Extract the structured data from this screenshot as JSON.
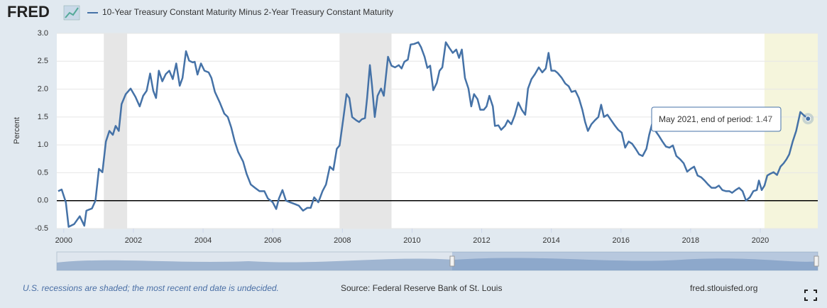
{
  "chart_data": {
    "type": "line",
    "logo": "FRED",
    "ylabel": "Percent",
    "xlim": [
      1999.8,
      2021.65
    ],
    "xticks": [
      2000,
      2002,
      2004,
      2006,
      2008,
      2010,
      2012,
      2014,
      2016,
      2018,
      2020
    ],
    "ylim": [
      -0.5,
      3.0
    ],
    "yticks": [
      {
        "value": 3.0,
        "label": "3.0"
      },
      2.5,
      {
        "value": 2.0,
        "label": "2.0"
      },
      1.5,
      {
        "value": 1.0,
        "label": "1.0"
      },
      0.5,
      {
        "value": 0,
        "label": "0.0"
      },
      -0.5
    ],
    "grid": true,
    "zero_line": true,
    "recessions": [
      {
        "start": 2001.15,
        "end": 2001.82,
        "color": "#e6e6e6"
      },
      {
        "start": 2007.92,
        "end": 2009.41,
        "color": "#e6e6e6"
      },
      {
        "start": 2020.12,
        "end": null,
        "color": "#f5f5dc"
      }
    ],
    "series": [
      {
        "name": "10-Year Treasury Constant Maturity Minus 2-Year Treasury Constant Maturity",
        "color": "#4572a7",
        "x": [
          1999.84,
          1999.94,
          2000.06,
          2000.14,
          2000.3,
          2000.46,
          2000.59,
          2000.65,
          2000.81,
          2000.91,
          2001.01,
          2001.11,
          2001.21,
          2001.31,
          2001.41,
          2001.49,
          2001.58,
          2001.66,
          2001.78,
          2001.92,
          2002.06,
          2002.18,
          2002.28,
          2002.38,
          2002.48,
          2002.57,
          2002.65,
          2002.73,
          2002.83,
          2002.93,
          2003.03,
          2003.13,
          2003.23,
          2003.33,
          2003.41,
          2003.51,
          2003.6,
          2003.7,
          2003.76,
          2003.84,
          2003.94,
          2004.04,
          2004.16,
          2004.24,
          2004.34,
          2004.48,
          2004.61,
          2004.71,
          2004.81,
          2004.91,
          2005.01,
          2005.15,
          2005.25,
          2005.37,
          2005.49,
          2005.62,
          2005.76,
          2005.86,
          2006.0,
          2006.1,
          2006.18,
          2006.28,
          2006.38,
          2006.5,
          2006.63,
          2006.75,
          2006.87,
          2006.99,
          2007.09,
          2007.19,
          2007.31,
          2007.43,
          2007.53,
          2007.64,
          2007.74,
          2007.84,
          2007.92,
          2008.02,
          2008.12,
          2008.2,
          2008.28,
          2008.4,
          2008.48,
          2008.56,
          2008.65,
          2008.71,
          2008.79,
          2008.85,
          2008.93,
          2009.01,
          2009.11,
          2009.19,
          2009.31,
          2009.41,
          2009.51,
          2009.62,
          2009.7,
          2009.78,
          2009.88,
          2009.96,
          2010.06,
          2010.18,
          2010.26,
          2010.36,
          2010.44,
          2010.52,
          2010.61,
          2010.71,
          2010.79,
          2010.87,
          2010.97,
          2011.07,
          2011.17,
          2011.27,
          2011.35,
          2011.43,
          2011.52,
          2011.62,
          2011.7,
          2011.78,
          2011.88,
          2011.96,
          2012.06,
          2012.14,
          2012.22,
          2012.32,
          2012.38,
          2012.48,
          2012.56,
          2012.67,
          2012.75,
          2012.85,
          2012.95,
          2013.05,
          2013.15,
          2013.25,
          2013.33,
          2013.43,
          2013.53,
          2013.64,
          2013.74,
          2013.84,
          2013.92,
          2014.0,
          2014.1,
          2014.18,
          2014.3,
          2014.4,
          2014.5,
          2014.58,
          2014.69,
          2014.79,
          2014.89,
          2014.97,
          2015.05,
          2015.15,
          2015.25,
          2015.35,
          2015.43,
          2015.51,
          2015.61,
          2015.72,
          2015.82,
          2015.92,
          2016.02,
          2016.12,
          2016.22,
          2016.32,
          2016.42,
          2016.52,
          2016.62,
          2016.73,
          2016.81,
          2016.89,
          2016.99,
          2017.09,
          2017.19,
          2017.29,
          2017.39,
          2017.49,
          2017.59,
          2017.7,
          2017.8,
          2017.9,
          2018.0,
          2018.1,
          2018.2,
          2018.3,
          2018.4,
          2018.5,
          2018.6,
          2018.71,
          2018.81,
          2018.91,
          2019.01,
          2019.11,
          2019.19,
          2019.29,
          2019.39,
          2019.49,
          2019.59,
          2019.7,
          2019.8,
          2019.9,
          2019.96,
          2020.04,
          2020.12,
          2020.2,
          2020.28,
          2020.38,
          2020.48,
          2020.58,
          2020.67,
          2020.75,
          2020.83,
          2020.93,
          2021.03,
          2021.15,
          2021.25,
          2021.37
        ],
        "values": [
          0.17,
          0.2,
          -0.03,
          -0.47,
          -0.42,
          -0.28,
          -0.45,
          -0.18,
          -0.14,
          0,
          0.57,
          0.51,
          1.06,
          1.25,
          1.18,
          1.34,
          1.25,
          1.73,
          1.91,
          2.01,
          1.86,
          1.69,
          1.88,
          1.97,
          2.28,
          1.97,
          1.84,
          2.33,
          2.14,
          2.27,
          2.33,
          2.18,
          2.46,
          2.06,
          2.2,
          2.68,
          2.51,
          2.48,
          2.49,
          2.26,
          2.46,
          2.33,
          2.3,
          2.2,
          1.95,
          1.76,
          1.56,
          1.5,
          1.31,
          1.06,
          0.87,
          0.7,
          0.48,
          0.29,
          0.23,
          0.17,
          0.17,
          0.04,
          -0.03,
          -0.15,
          0.04,
          0.19,
          0,
          -0.03,
          -0.06,
          -0.09,
          -0.18,
          -0.13,
          -0.13,
          0.06,
          -0.03,
          0.17,
          0.29,
          0.61,
          0.55,
          0.93,
          0.99,
          1.44,
          1.91,
          1.84,
          1.5,
          1.44,
          1.41,
          1.46,
          1.48,
          1.84,
          2.43,
          2.07,
          1.5,
          1.88,
          2.01,
          1.88,
          2.58,
          2.42,
          2.39,
          2.43,
          2.37,
          2.49,
          2.53,
          2.8,
          2.81,
          2.84,
          2.75,
          2.58,
          2.38,
          2.42,
          1.98,
          2.11,
          2.33,
          2.39,
          2.84,
          2.74,
          2.65,
          2.71,
          2.56,
          2.71,
          2.2,
          2.01,
          1.69,
          1.91,
          1.82,
          1.63,
          1.63,
          1.69,
          1.88,
          1.69,
          1.34,
          1.35,
          1.27,
          1.34,
          1.44,
          1.37,
          1.53,
          1.76,
          1.63,
          1.54,
          2.01,
          2.18,
          2.27,
          2.39,
          2.3,
          2.37,
          2.65,
          2.33,
          2.33,
          2.29,
          2.2,
          2.1,
          2.05,
          1.95,
          1.97,
          1.84,
          1.63,
          1.41,
          1.25,
          1.37,
          1.44,
          1.5,
          1.72,
          1.5,
          1.54,
          1.44,
          1.35,
          1.27,
          1.22,
          0.95,
          1.06,
          1.02,
          0.93,
          0.83,
          0.8,
          0.93,
          1.18,
          1.37,
          1.25,
          1.16,
          1.06,
          0.97,
          0.95,
          0.99,
          0.8,
          0.74,
          0.67,
          0.52,
          0.57,
          0.61,
          0.45,
          0.42,
          0.36,
          0.29,
          0.23,
          0.23,
          0.27,
          0.19,
          0.17,
          0.17,
          0.14,
          0.19,
          0.23,
          0.17,
          0,
          0.06,
          0.17,
          0.19,
          0.36,
          0.19,
          0.27,
          0.45,
          0.48,
          0.51,
          0.46,
          0.61,
          0.67,
          0.74,
          0.83,
          1.06,
          1.25,
          1.59,
          1.53,
          1.47
        ]
      }
    ],
    "tooltip": {
      "label": "May 2021, end of period:"
    },
    "footnote": "U.S. recessions are shaded; the most recent end date is undecided.",
    "source": "Source: Federal Reserve Bank of St. Louis",
    "site": "fred.stlouisfed.org"
  }
}
